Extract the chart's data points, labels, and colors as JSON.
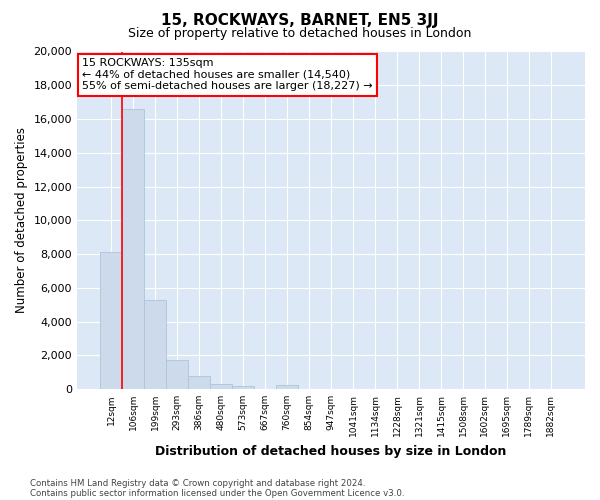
{
  "title": "15, ROCKWAYS, BARNET, EN5 3JJ",
  "subtitle": "Size of property relative to detached houses in London",
  "xlabel": "Distribution of detached houses by size in London",
  "ylabel": "Number of detached properties",
  "bar_color": "#ccdaeb",
  "bar_edgecolor": "#aec4d8",
  "annotation_text": "15 ROCKWAYS: 135sqm\n← 44% of detached houses are smaller (14,540)\n55% of semi-detached houses are larger (18,227) →",
  "categories": [
    "12sqm",
    "106sqm",
    "199sqm",
    "293sqm",
    "386sqm",
    "480sqm",
    "573sqm",
    "667sqm",
    "760sqm",
    "854sqm",
    "947sqm",
    "1041sqm",
    "1134sqm",
    "1228sqm",
    "1321sqm",
    "1415sqm",
    "1508sqm",
    "1602sqm",
    "1695sqm",
    "1789sqm",
    "1882sqm"
  ],
  "values": [
    8150,
    16600,
    5300,
    1750,
    800,
    320,
    200,
    0,
    260,
    0,
    0,
    0,
    0,
    0,
    0,
    0,
    0,
    0,
    0,
    0,
    0
  ],
  "ylim": [
    0,
    20000
  ],
  "yticks": [
    0,
    2000,
    4000,
    6000,
    8000,
    10000,
    12000,
    14000,
    16000,
    18000,
    20000
  ],
  "red_line_x": 1.0,
  "footnote1": "Contains HM Land Registry data © Crown copyright and database right 2024.",
  "footnote2": "Contains public sector information licensed under the Open Government Licence v3.0.",
  "background_color": "#dce8f5",
  "grid_color": "#ffffff",
  "fig_bg": "#ffffff"
}
